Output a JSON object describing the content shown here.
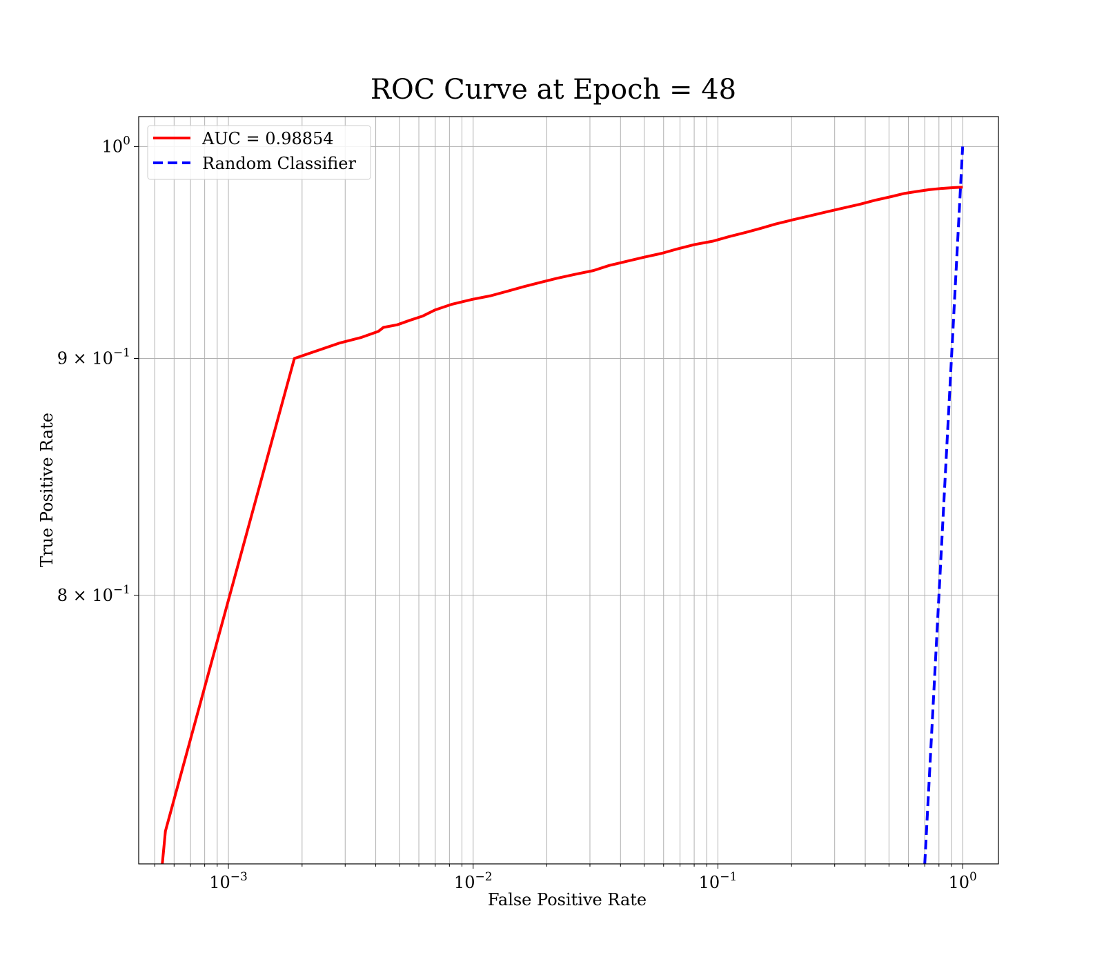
{
  "chart_data": {
    "type": "line",
    "title": "ROC Curve at Epoch = 48",
    "xlabel": "False Positive Rate",
    "ylabel": "True Positive Rate",
    "xscale": "log",
    "yscale": "log",
    "xlim": [
      0.00043,
      1.4
    ],
    "ylim": [
      0.7,
      1.015
    ],
    "grid": true,
    "grid_which": "both",
    "legend_placement": "top-left",
    "x_ticks": [
      {
        "value": 0.001,
        "base": "10",
        "exp": "−3"
      },
      {
        "value": 0.01,
        "base": "10",
        "exp": "−2"
      },
      {
        "value": 0.1,
        "base": "10",
        "exp": "−1"
      },
      {
        "value": 1,
        "base": "10",
        "exp": "0"
      }
    ],
    "y_ticks": [
      {
        "value": 1.0,
        "prefix": "",
        "base": "10",
        "exp": "0"
      },
      {
        "value": 0.9,
        "prefix": "9 × ",
        "base": "10",
        "exp": "−1"
      },
      {
        "value": 0.8,
        "prefix": "8 × ",
        "base": "10",
        "exp": "−1"
      }
    ],
    "series": [
      {
        "name": "AUC = 0.98854",
        "color": "#ff0000",
        "style": "solid",
        "x": [
          0.000537,
          0.000553,
          0.00186,
          0.00286,
          0.0035,
          0.0041,
          0.0043,
          0.0049,
          0.0055,
          0.0062,
          0.007,
          0.0082,
          0.0099,
          0.0118,
          0.0138,
          0.0162,
          0.019,
          0.022,
          0.026,
          0.031,
          0.036,
          0.043,
          0.05,
          0.059,
          0.068,
          0.08,
          0.095,
          0.111,
          0.13,
          0.15,
          0.172,
          0.2,
          0.235,
          0.275,
          0.32,
          0.38,
          0.44,
          0.51,
          0.58,
          0.65,
          0.73,
          0.82,
          0.92,
          1.0
        ],
        "y": [
          0.7,
          0.7115,
          0.9,
          0.907,
          0.9095,
          0.9122,
          0.914,
          0.9152,
          0.9172,
          0.9191,
          0.922,
          0.9246,
          0.9268,
          0.9285,
          0.9306,
          0.9328,
          0.9348,
          0.9366,
          0.9384,
          0.9402,
          0.9426,
          0.9447,
          0.9465,
          0.9483,
          0.9503,
          0.9524,
          0.954,
          0.9562,
          0.9582,
          0.9602,
          0.9622,
          0.9641,
          0.966,
          0.9679,
          0.9697,
          0.9717,
          0.9737,
          0.9754,
          0.977,
          0.9779,
          0.9788,
          0.9794,
          0.9798,
          0.98
        ]
      },
      {
        "name": "Random Classifier",
        "color": "#0000ff",
        "style": "dashed",
        "x": [
          0.7,
          0.75,
          0.8,
          0.85,
          0.9,
          0.95,
          1.0
        ],
        "y": [
          0.7,
          0.75,
          0.8,
          0.85,
          0.9,
          0.95,
          1.0
        ]
      }
    ]
  }
}
